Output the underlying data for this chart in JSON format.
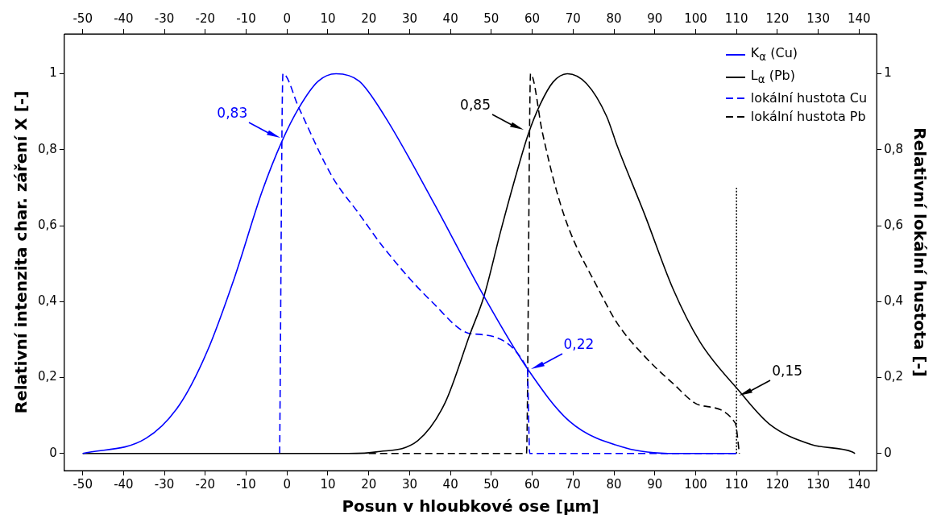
{
  "chart_data": {
    "type": "line",
    "xlabel": "Posun v hloubkové ose [µm]",
    "ylabel": "Relativní intenzita char. záření X [-]",
    "y2label": "Relativní lokální hustota [-]",
    "xlim": [
      -54.5,
      144.3
    ],
    "xticks": [
      -50,
      -40,
      -30,
      -20,
      -10,
      0,
      10,
      20,
      30,
      40,
      50,
      60,
      70,
      80,
      90,
      100,
      110,
      120,
      130,
      140
    ],
    "x2lim": [
      -54.5,
      144.3
    ],
    "x2ticks": [
      -50,
      -40,
      -30,
      -20,
      -10,
      0,
      10,
      20,
      30,
      40,
      50,
      60,
      70,
      80,
      90,
      100,
      110,
      120,
      130,
      140
    ],
    "ylim": [
      -0.045,
      1.105
    ],
    "yticks": [
      0,
      {
        "value": 0.2,
        "label": "0,2"
      },
      {
        "value": 0.4,
        "label": "0,4"
      },
      {
        "value": 0.6,
        "label": "0,6"
      },
      {
        "value": 0.8,
        "label": "0,8"
      },
      1
    ],
    "y2lim": [
      -0.045,
      1.105
    ],
    "y2ticks": [
      0,
      {
        "value": 0.2,
        "label": "0,2"
      },
      {
        "value": 0.4,
        "label": "0,4"
      },
      {
        "value": 0.6,
        "label": "0,6"
      },
      {
        "value": 0.8,
        "label": "0,8"
      },
      1
    ],
    "grid": false,
    "legend": "top right",
    "marker": "none",
    "series": [
      {
        "name": "K$_{α}$ (Cu)",
        "color": "#0000ff",
        "line_style": "solid",
        "x": [
          -50,
          -34.5,
          -26.4,
          -19.5,
          -12.8,
          -6.1,
          -1.2,
          2.9,
          7.6,
          12,
          17.7,
          23.8,
          35.4,
          48.2,
          58.8,
          69.2,
          82.8,
          95,
          110
        ],
        "values": [
          0,
          0.04,
          0.127,
          0.27,
          0.465,
          0.69,
          0.823,
          0.91,
          0.98,
          1,
          0.98,
          0.89,
          0.67,
          0.414,
          0.224,
          0.084,
          0.015,
          0,
          0
        ]
      },
      {
        "name": "L$_{α}$ (Pb)",
        "color": "#000000",
        "line_style": "solid",
        "x": [
          -50,
          15,
          21.8,
          32,
          38.7,
          44.8,
          48.2,
          52.3,
          55.8,
          59,
          61.9,
          65.1,
          68.6,
          73.3,
          78.2,
          80.8,
          87.5,
          94.4,
          101.1,
          110.7,
          118,
          128.2,
          138.4,
          139
        ],
        "values": [
          0,
          0,
          0.004,
          0.034,
          0.134,
          0.315,
          0.414,
          0.586,
          0.724,
          0.84,
          0.918,
          0.978,
          1,
          0.974,
          0.888,
          0.81,
          0.63,
          0.435,
          0.293,
          0.164,
          0.078,
          0.024,
          0.004,
          0
        ]
      },
      {
        "name": "lokální hustota Cu",
        "color": "#0000ff",
        "line_style": "dashed",
        "x": [
          -1.8,
          -1,
          2.9,
          11,
          17.7,
          23.8,
          35.4,
          45.2,
          58.8,
          59.4,
          110
        ],
        "values": [
          0,
          1,
          0.91,
          0.73,
          0.63,
          0.54,
          0.4,
          0.315,
          0.224,
          0,
          0
        ]
      },
      {
        "name": "lokální hustota Pb",
        "color": "#000000",
        "line_style": "dashed",
        "x": [
          20,
          58.6,
          59.6,
          62.5,
          65.9,
          69.2,
          76.1,
          80.8,
          87.5,
          94.4,
          101.1,
          109.7,
          110.7
        ],
        "values": [
          0,
          0,
          1,
          0.845,
          0.694,
          0.586,
          0.435,
          0.343,
          0.256,
          0.185,
          0.127,
          0.08,
          0
        ]
      },
      {
        "color": "#000000",
        "line_style": "dotted",
        "x": [
          110,
          110
        ],
        "values": [
          0,
          0.7
        ]
      }
    ],
    "annotations": [
      {
        "text": "0,83",
        "x": -1,
        "y": 0.83
      },
      {
        "text": "0,85",
        "x": 58.5,
        "y": 0.85
      },
      {
        "text": "0,22",
        "x": 59,
        "y": 0.22
      },
      {
        "text": "0,15",
        "x": 110,
        "y": 0.15
      }
    ]
  }
}
